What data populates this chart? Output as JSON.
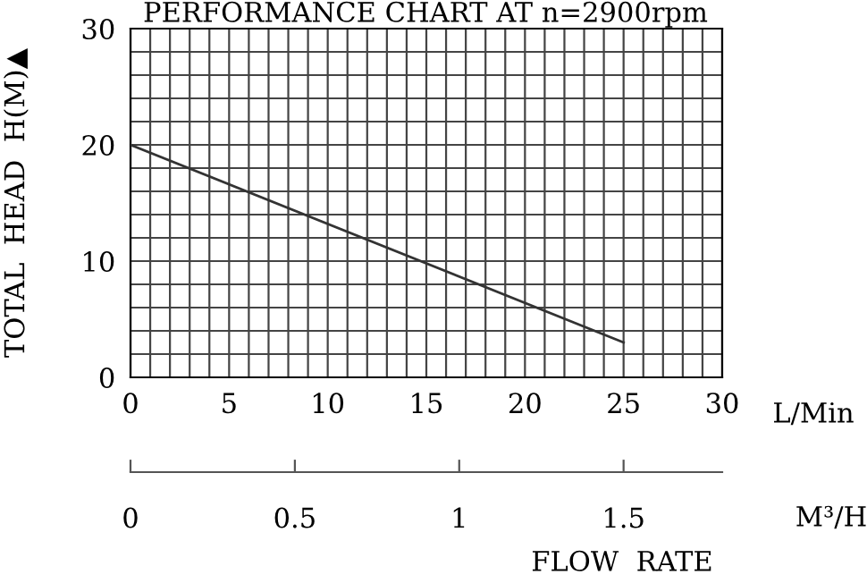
{
  "chart_data": {
    "type": "line",
    "title": "PERFORMANCE CHART AT n=2900rpm",
    "xlabel": "L/Min",
    "ylabel": "TOTAL  HEAD  H(M)▲",
    "x2label": "M³/H",
    "annotations": [
      "FLOW  RATE"
    ],
    "series": [
      {
        "color": "#333333",
        "x": [
          0,
          25
        ],
        "values": [
          20,
          3
        ]
      }
    ],
    "xlim": [
      0,
      30
    ],
    "xticks": [
      0,
      {
        "value": 1,
        "label": null
      },
      {
        "value": 2,
        "label": null
      },
      {
        "value": 3,
        "label": null
      },
      {
        "value": 4,
        "label": null
      },
      5,
      {
        "value": 6,
        "label": null
      },
      {
        "value": 7,
        "label": null
      },
      {
        "value": 8,
        "label": null
      },
      {
        "value": 9,
        "label": null
      },
      10,
      {
        "value": 11,
        "label": null
      },
      {
        "value": 12,
        "label": null
      },
      {
        "value": 13,
        "label": null
      },
      {
        "value": 14,
        "label": null
      },
      15,
      {
        "value": 16,
        "label": null
      },
      {
        "value": 17,
        "label": null
      },
      {
        "value": 18,
        "label": null
      },
      {
        "value": 19,
        "label": null
      },
      20,
      {
        "value": 21,
        "label": null
      },
      {
        "value": 22,
        "label": null
      },
      {
        "value": 23,
        "label": null
      },
      {
        "value": 24,
        "label": null
      },
      25,
      {
        "value": 26,
        "label": null
      },
      {
        "value": 27,
        "label": null
      },
      {
        "value": 28,
        "label": null
      },
      {
        "value": 29,
        "label": null
      },
      30
    ],
    "ylim": [
      0,
      30
    ],
    "yticks": [
      0,
      {
        "value": 2,
        "label": null
      },
      {
        "value": 4,
        "label": null
      },
      {
        "value": 6,
        "label": null
      },
      {
        "value": 8,
        "label": null
      },
      10,
      {
        "value": 12,
        "label": null
      },
      {
        "value": 14,
        "label": null
      },
      {
        "value": 16,
        "label": null
      },
      {
        "value": 18,
        "label": null
      },
      20,
      {
        "value": 22,
        "label": null
      },
      {
        "value": 24,
        "label": null
      },
      {
        "value": 26,
        "label": null
      },
      {
        "value": 28,
        "label": null
      },
      30
    ],
    "x2lim": [
      0,
      1.8
    ],
    "x2ticks": [
      0,
      0.5,
      1,
      1.5
    ],
    "grid": true,
    "marker": "none",
    "line_style": "solid"
  }
}
